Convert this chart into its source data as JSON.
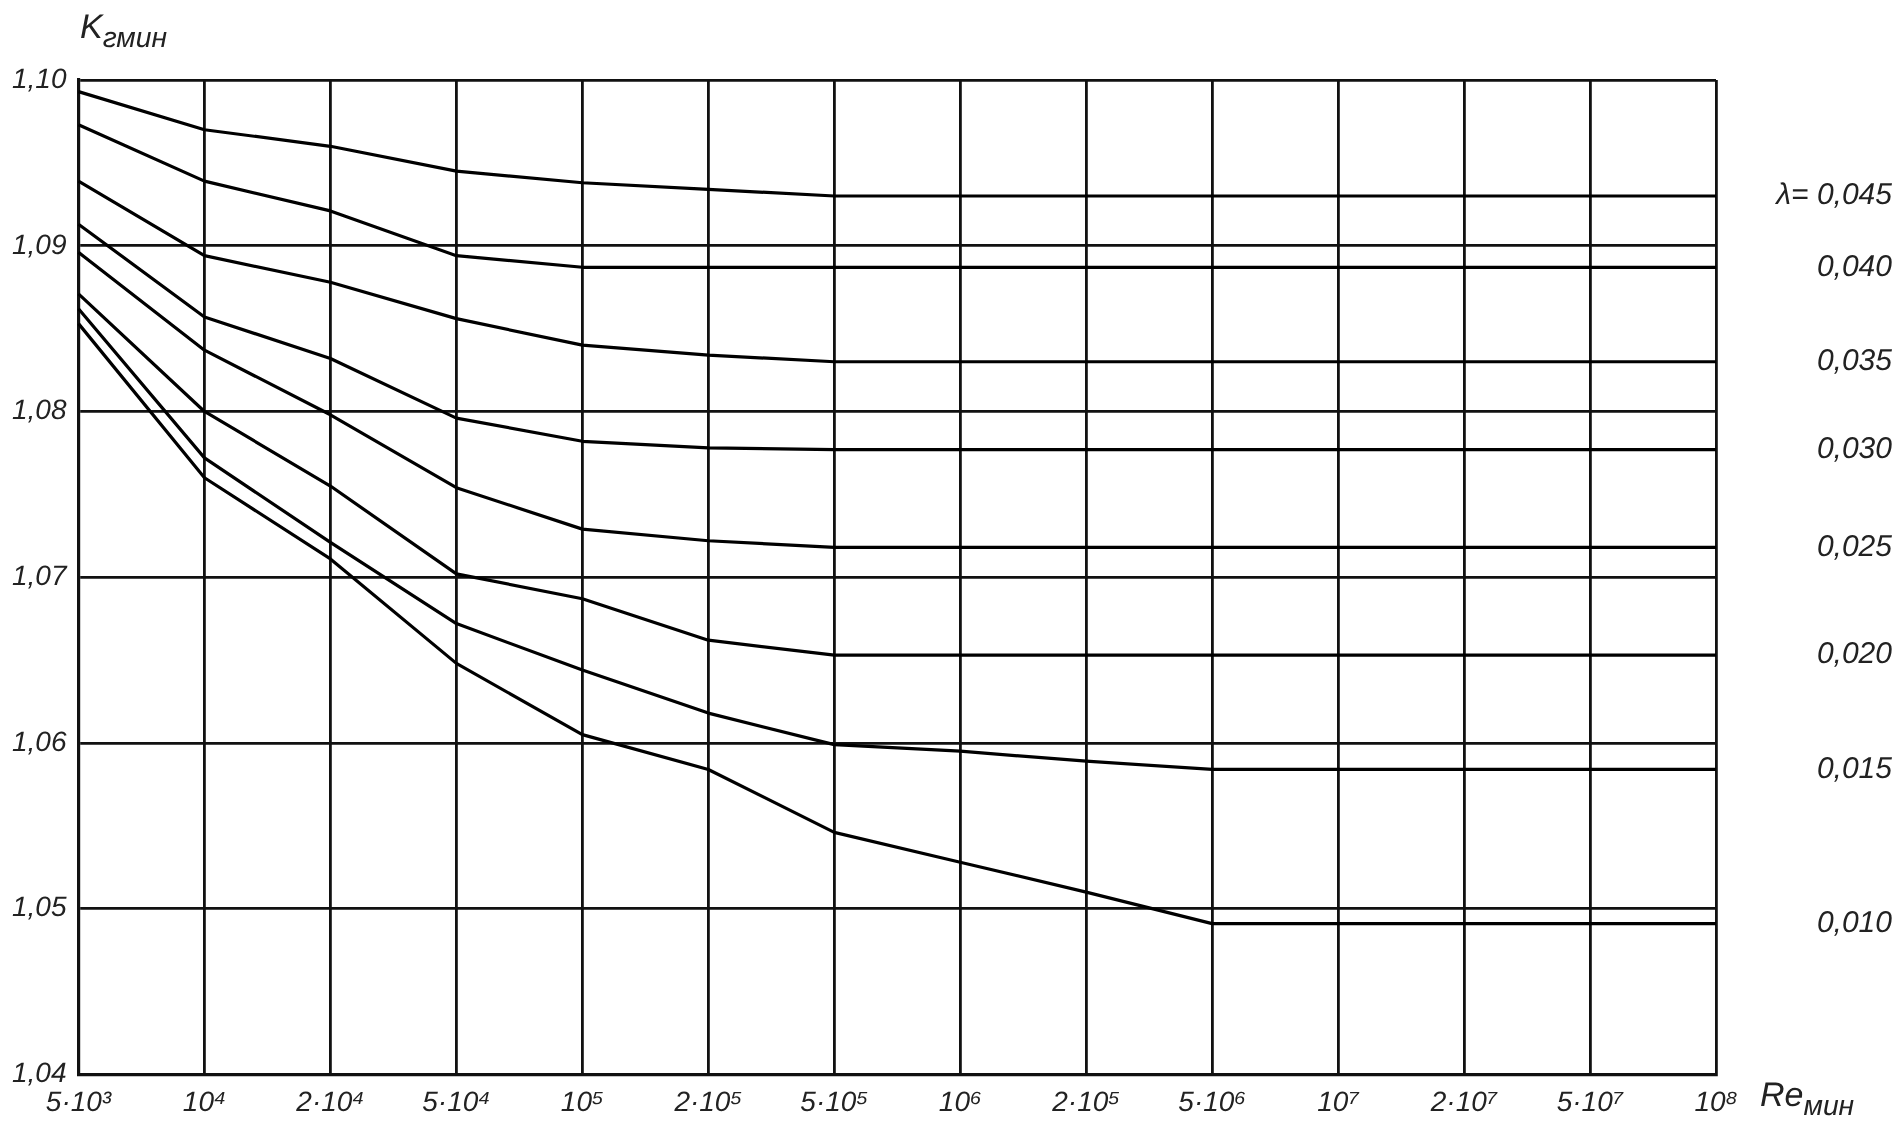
{
  "chart_data": {
    "type": "line",
    "xlabel": "Re$_{мин}$",
    "ylabel": "K$_{гмин}$",
    "categories": [
      "5·10³",
      "10⁴",
      "2·10⁴",
      "5·10⁴",
      "10⁵",
      "2·10⁵",
      "5·10⁵",
      "10⁶",
      "2·10⁵",
      "5·10⁶",
      "10⁷",
      "2·10⁷",
      "5·10⁷",
      "10⁸"
    ],
    "series": [
      {
        "name": "λ= 0,045",
        "color": "#000000",
        "values": [
          1.0993,
          1.097,
          1.096,
          1.0945,
          1.0938,
          1.0934,
          1.093,
          1.093,
          1.093,
          1.093,
          1.093,
          1.093,
          1.093,
          1.093
        ]
      },
      {
        "name": "0,040",
        "color": "#000000",
        "values": [
          1.0973,
          1.0939,
          1.0921,
          1.0894,
          1.0887,
          1.0887,
          1.0887,
          1.0887,
          1.0887,
          1.0887,
          1.0887,
          1.0887,
          1.0887,
          1.0887
        ]
      },
      {
        "name": "0,035",
        "color": "#000000",
        "values": [
          1.0939,
          1.0894,
          1.0878,
          1.0856,
          1.084,
          1.0834,
          1.083,
          1.083,
          1.083,
          1.083,
          1.083,
          1.083,
          1.083,
          1.083
        ]
      },
      {
        "name": "0,030",
        "color": "#000000",
        "values": [
          1.0913,
          1.0857,
          1.0832,
          1.0796,
          1.0782,
          1.0778,
          1.0777,
          1.0777,
          1.0777,
          1.0777,
          1.0777,
          1.0777,
          1.0777,
          1.0777
        ]
      },
      {
        "name": "0,025",
        "color": "#000000",
        "values": [
          1.0896,
          1.0837,
          1.0798,
          1.0754,
          1.0729,
          1.0722,
          1.0718,
          1.0718,
          1.0718,
          1.0718,
          1.0718,
          1.0718,
          1.0718,
          1.0718
        ]
      },
      {
        "name": "0,020",
        "color": "#000000",
        "values": [
          1.0871,
          1.08,
          1.0755,
          1.0702,
          1.0687,
          1.0662,
          1.0653,
          1.0653,
          1.0653,
          1.0653,
          1.0653,
          1.0653,
          1.0653,
          1.0653
        ]
      },
      {
        "name": "0,015",
        "color": "#000000",
        "values": [
          1.0862,
          1.0772,
          1.0721,
          1.0672,
          1.0644,
          1.0618,
          1.0599,
          1.0595,
          1.0589,
          1.0584,
          1.0584,
          1.0584,
          1.0584,
          1.0584
        ]
      },
      {
        "name": "0,010",
        "color": "#000000",
        "values": [
          1.0853,
          1.076,
          1.0711,
          1.0648,
          1.0605,
          1.0584,
          1.0546,
          1.0528,
          1.051,
          1.0491,
          1.0491,
          1.0491,
          1.0491,
          1.0491
        ]
      }
    ],
    "ylim": [
      1.04,
      1.1
    ],
    "yticks": [
      {
        "value": 1.04,
        "label": "1,04"
      },
      {
        "value": 1.05,
        "label": "1,05"
      },
      {
        "value": 1.06,
        "label": "1,06"
      },
      {
        "value": 1.07,
        "label": "1,07"
      },
      {
        "value": 1.08,
        "label": "1,08"
      },
      {
        "value": 1.09,
        "label": "1,09"
      },
      {
        "value": 1.1,
        "label": "1,10"
      }
    ],
    "grid": true,
    "legend": false,
    "marker": "none",
    "line_style": "solid"
  }
}
